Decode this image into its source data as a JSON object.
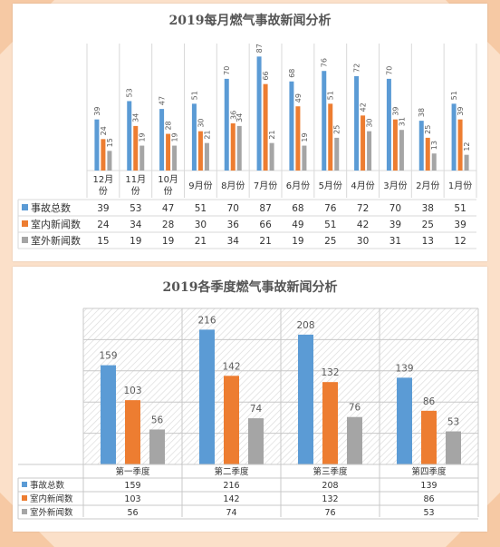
{
  "colors": {
    "series1": "#5b9bd5",
    "series2": "#ed7d31",
    "series3": "#a5a5a5",
    "background": "#fbe0c9",
    "grid": "#d9d9d9"
  },
  "chart_data": [
    {
      "type": "bar",
      "title": "2019每月燃气事故新闻分析",
      "categories": [
        "12月份",
        "11月份",
        "10月份",
        "9月份",
        "8月份",
        "7月份",
        "6月份",
        "5月份",
        "4月份",
        "3月份",
        "2月份",
        "1月份"
      ],
      "series": [
        {
          "name": "事故总数",
          "values": [
            39,
            53,
            47,
            51,
            70,
            87,
            68,
            76,
            72,
            70,
            38,
            51
          ]
        },
        {
          "name": "室内新闻数",
          "values": [
            24,
            34,
            28,
            30,
            36,
            66,
            49,
            51,
            42,
            39,
            25,
            39
          ]
        },
        {
          "name": "室外新闻数",
          "values": [
            15,
            19,
            19,
            21,
            34,
            21,
            19,
            25,
            30,
            31,
            13,
            12
          ]
        }
      ],
      "ylim": [
        0,
        90
      ],
      "grid": false,
      "legend": "data table below chart",
      "data_labels": "rotated, above bars"
    },
    {
      "type": "bar",
      "title": "2019各季度燃气事故新闻分析",
      "categories": [
        "第一季度",
        "第二季度",
        "第三季度",
        "第四季度"
      ],
      "series": [
        {
          "name": "事故总数",
          "values": [
            159,
            216,
            208,
            139
          ]
        },
        {
          "name": "室内新闻数",
          "values": [
            103,
            142,
            132,
            86
          ]
        },
        {
          "name": "室外新闻数",
          "values": [
            56,
            74,
            76,
            53
          ]
        }
      ],
      "ylim": [
        0,
        250
      ],
      "grid": true,
      "legend": "data table below chart",
      "data_labels": "above bars"
    }
  ]
}
